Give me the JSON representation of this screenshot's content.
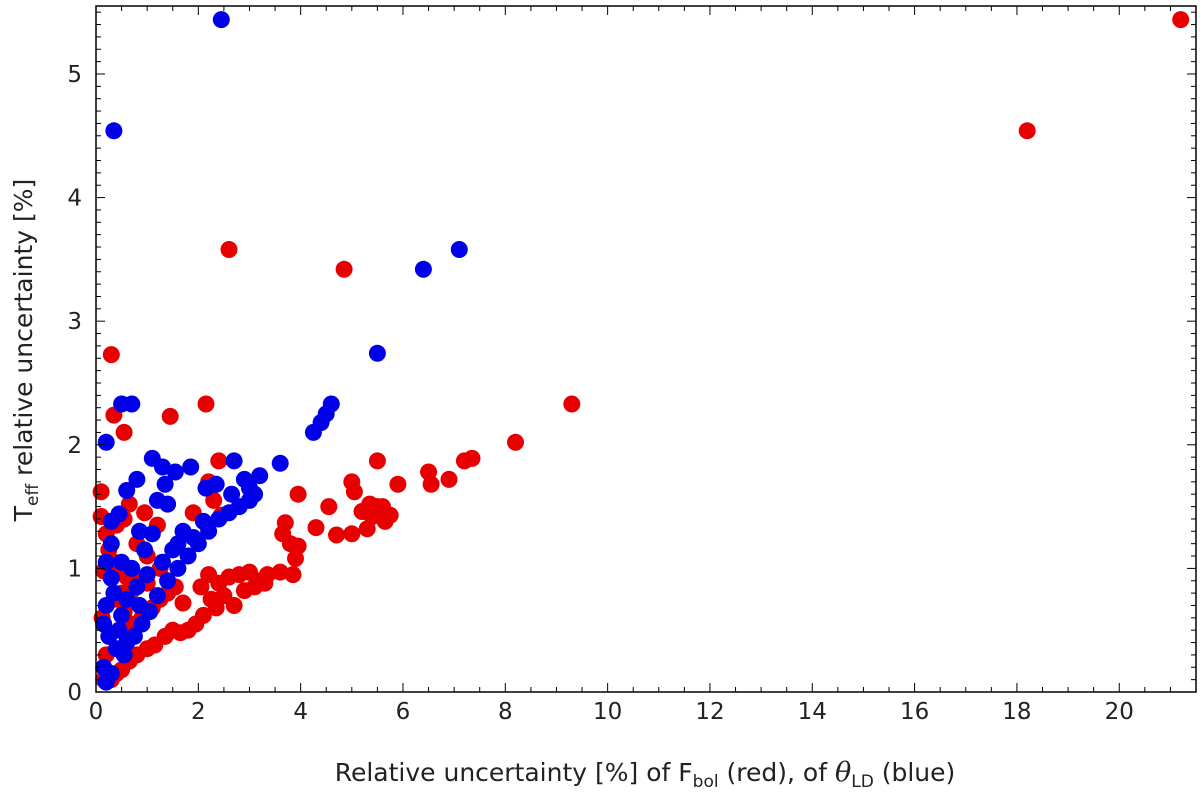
{
  "chart_data": {
    "type": "scatter",
    "xlim": [
      0,
      21.5
    ],
    "ylim": [
      0,
      5.55
    ],
    "x_ticks": [
      0,
      2,
      4,
      6,
      8,
      10,
      12,
      14,
      16,
      18,
      20
    ],
    "y_ticks": [
      0,
      1,
      2,
      3,
      4,
      5
    ],
    "x_minor_step": 0.5,
    "y_minor_step": 0.1,
    "grid": false,
    "xlabel": {
      "prefix": "Relative uncertainty [%] of F",
      "sub1": "bol",
      "middle": " (red), of ",
      "greek": "θ",
      "sub2": "LD",
      "suffix": " (blue)"
    },
    "ylabel": {
      "main": "T",
      "sub": "eff",
      "rest": " relative uncertainty [%]"
    },
    "colors": {
      "Fbol": "#e80000",
      "thetaLD": "#0000e8"
    },
    "series": [
      {
        "key": "Fbol",
        "color": "#e80000",
        "points": [
          [
            21.2,
            5.44
          ],
          [
            18.2,
            4.54
          ],
          [
            2.6,
            3.58
          ],
          [
            4.85,
            3.42
          ],
          [
            0.3,
            2.73
          ],
          [
            9.3,
            2.33
          ],
          [
            2.15,
            2.33
          ],
          [
            1.45,
            2.23
          ],
          [
            0.35,
            2.24
          ],
          [
            0.55,
            2.1
          ],
          [
            8.2,
            2.02
          ],
          [
            7.35,
            1.89
          ],
          [
            7.2,
            1.87
          ],
          [
            5.5,
            1.87
          ],
          [
            6.5,
            1.78
          ],
          [
            6.55,
            1.68
          ],
          [
            6.9,
            1.72
          ],
          [
            5.9,
            1.68
          ],
          [
            5.0,
            1.7
          ],
          [
            5.05,
            1.62
          ],
          [
            5.5,
            1.5
          ],
          [
            5.35,
            1.52
          ],
          [
            5.6,
            1.5
          ],
          [
            5.2,
            1.46
          ],
          [
            5.4,
            1.42
          ],
          [
            5.65,
            1.38
          ],
          [
            5.75,
            1.43
          ],
          [
            5.3,
            1.32
          ],
          [
            5.0,
            1.28
          ],
          [
            4.7,
            1.27
          ],
          [
            4.3,
            1.33
          ],
          [
            4.55,
            1.5
          ],
          [
            3.95,
            1.6
          ],
          [
            2.4,
            1.87
          ],
          [
            2.2,
            1.7
          ],
          [
            2.3,
            1.55
          ],
          [
            2.45,
            1.43
          ],
          [
            1.9,
            1.45
          ],
          [
            3.7,
            1.37
          ],
          [
            3.8,
            1.2
          ],
          [
            3.65,
            1.28
          ],
          [
            3.95,
            1.18
          ],
          [
            3.9,
            1.08
          ],
          [
            3.85,
            0.95
          ],
          [
            3.6,
            0.97
          ],
          [
            3.35,
            0.95
          ],
          [
            3.2,
            0.9
          ],
          [
            3.0,
            0.97
          ],
          [
            3.3,
            0.88
          ],
          [
            3.1,
            0.85
          ],
          [
            2.8,
            0.95
          ],
          [
            2.9,
            0.82
          ],
          [
            2.6,
            0.93
          ],
          [
            2.4,
            0.88
          ],
          [
            2.5,
            0.78
          ],
          [
            2.7,
            0.7
          ],
          [
            2.2,
            0.95
          ],
          [
            2.05,
            0.85
          ],
          [
            2.25,
            0.75
          ],
          [
            2.35,
            0.68
          ],
          [
            2.1,
            0.62
          ],
          [
            1.95,
            0.55
          ],
          [
            1.8,
            0.5
          ],
          [
            1.65,
            0.48
          ],
          [
            1.5,
            0.5
          ],
          [
            1.35,
            0.45
          ],
          [
            1.15,
            0.38
          ],
          [
            1.0,
            0.35
          ],
          [
            0.8,
            0.3
          ],
          [
            0.65,
            0.25
          ],
          [
            0.5,
            0.18
          ],
          [
            0.4,
            0.15
          ],
          [
            0.3,
            0.1
          ],
          [
            0.15,
            0.1
          ],
          [
            0.2,
            0.3
          ],
          [
            0.12,
            0.6
          ],
          [
            0.1,
            1.62
          ],
          [
            0.1,
            1.42
          ],
          [
            0.2,
            1.28
          ],
          [
            0.25,
            1.15
          ],
          [
            0.35,
            1.05
          ],
          [
            0.45,
            1.0
          ],
          [
            0.6,
            0.93
          ],
          [
            0.15,
            0.98
          ],
          [
            0.5,
            0.8
          ],
          [
            0.7,
            0.82
          ],
          [
            0.8,
            0.92
          ],
          [
            0.35,
            0.75
          ],
          [
            0.55,
            0.65
          ],
          [
            0.7,
            0.55
          ],
          [
            0.9,
            0.6
          ],
          [
            1.1,
            0.68
          ],
          [
            1.25,
            0.75
          ],
          [
            1.4,
            0.8
          ],
          [
            1.55,
            0.85
          ],
          [
            1.7,
            0.72
          ],
          [
            1.0,
            0.88
          ],
          [
            0.55,
            1.4
          ],
          [
            0.65,
            1.52
          ],
          [
            0.4,
            1.35
          ],
          [
            1.0,
            1.1
          ],
          [
            1.25,
            1.0
          ],
          [
            0.95,
            1.45
          ],
          [
            1.2,
            1.35
          ],
          [
            0.8,
            1.2
          ]
        ]
      },
      {
        "key": "thetaLD",
        "color": "#0000e8",
        "points": [
          [
            2.45,
            5.44
          ],
          [
            0.35,
            4.54
          ],
          [
            7.1,
            3.58
          ],
          [
            6.4,
            3.42
          ],
          [
            5.5,
            2.74
          ],
          [
            0.5,
            2.33
          ],
          [
            0.7,
            2.33
          ],
          [
            0.2,
            2.02
          ],
          [
            4.6,
            2.33
          ],
          [
            4.5,
            2.25
          ],
          [
            4.4,
            2.18
          ],
          [
            4.25,
            2.1
          ],
          [
            1.1,
            1.89
          ],
          [
            1.3,
            1.82
          ],
          [
            1.55,
            1.78
          ],
          [
            1.85,
            1.82
          ],
          [
            2.7,
            1.87
          ],
          [
            3.6,
            1.85
          ],
          [
            0.8,
            1.72
          ],
          [
            0.6,
            1.63
          ],
          [
            1.35,
            1.68
          ],
          [
            2.35,
            1.68
          ],
          [
            2.15,
            1.65
          ],
          [
            3.2,
            1.75
          ],
          [
            2.9,
            1.72
          ],
          [
            2.65,
            1.6
          ],
          [
            3.0,
            1.65
          ],
          [
            1.2,
            1.55
          ],
          [
            1.4,
            1.52
          ],
          [
            0.45,
            1.44
          ],
          [
            0.3,
            1.38
          ],
          [
            0.3,
            1.2
          ],
          [
            0.85,
            1.3
          ],
          [
            1.1,
            1.28
          ],
          [
            1.7,
            1.3
          ],
          [
            1.6,
            1.2
          ],
          [
            0.95,
            1.15
          ],
          [
            0.2,
            1.05
          ],
          [
            0.3,
            0.92
          ],
          [
            0.35,
            0.8
          ],
          [
            0.2,
            0.7
          ],
          [
            0.15,
            0.55
          ],
          [
            0.5,
            0.62
          ],
          [
            0.45,
            0.5
          ],
          [
            0.25,
            0.45
          ],
          [
            0.4,
            0.35
          ],
          [
            0.55,
            0.3
          ],
          [
            0.75,
            0.45
          ],
          [
            0.9,
            0.55
          ],
          [
            1.05,
            0.65
          ],
          [
            1.2,
            0.78
          ],
          [
            1.4,
            0.9
          ],
          [
            1.6,
            1.0
          ],
          [
            1.8,
            1.1
          ],
          [
            2.0,
            1.2
          ],
          [
            2.2,
            1.3
          ],
          [
            2.4,
            1.4
          ],
          [
            2.6,
            1.45
          ],
          [
            2.8,
            1.5
          ],
          [
            3.0,
            1.55
          ],
          [
            3.1,
            1.6
          ],
          [
            0.6,
            0.75
          ],
          [
            0.8,
            0.85
          ],
          [
            1.0,
            0.95
          ],
          [
            0.7,
            1.0
          ],
          [
            0.5,
            1.05
          ],
          [
            1.3,
            1.05
          ],
          [
            1.5,
            1.15
          ],
          [
            1.9,
            1.25
          ],
          [
            2.1,
            1.38
          ],
          [
            0.15,
            0.2
          ],
          [
            0.2,
            0.08
          ],
          [
            0.3,
            0.15
          ],
          [
            0.6,
            0.4
          ],
          [
            0.85,
            0.7
          ]
        ]
      }
    ]
  }
}
